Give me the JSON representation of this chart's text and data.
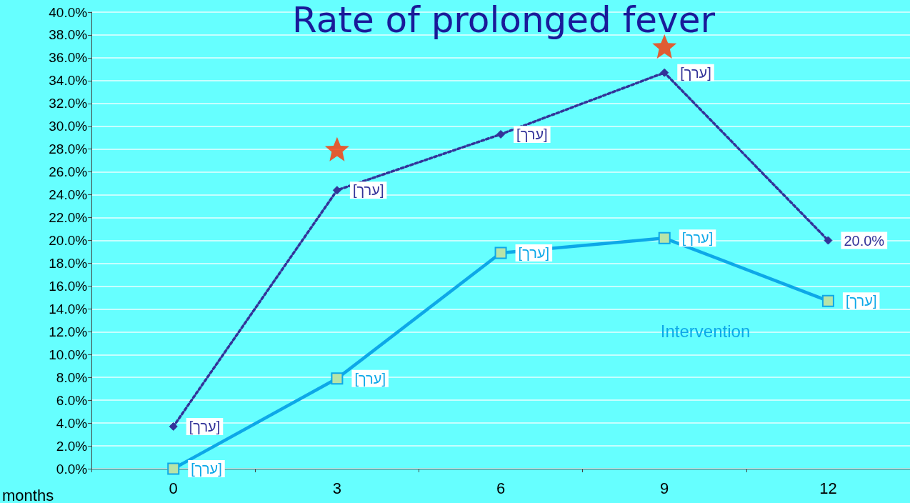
{
  "chart_data": {
    "type": "line",
    "title": "Rate of prolonged fever",
    "xlabel": "months",
    "categories": [
      "0",
      "3",
      "6",
      "9",
      "12"
    ],
    "ylim": [
      0,
      40
    ],
    "yticks": [
      {
        "value": 0,
        "label": "0.0%"
      },
      {
        "value": 2,
        "label": "2.0%"
      },
      {
        "value": 4,
        "label": "4.0%"
      },
      {
        "value": 6,
        "label": "6.0%"
      },
      {
        "value": 8,
        "label": "8.0%"
      },
      {
        "value": 10,
        "label": "10.0%"
      },
      {
        "value": 12,
        "label": "12.0%"
      },
      {
        "value": 14,
        "label": "14.0%"
      },
      {
        "value": 16,
        "label": "16.0%"
      },
      {
        "value": 18,
        "label": "18.0%"
      },
      {
        "value": 20,
        "label": "20.0%"
      },
      {
        "value": 22,
        "label": "22.0%"
      },
      {
        "value": 24,
        "label": "24.0%"
      },
      {
        "value": 26,
        "label": "26.0%"
      },
      {
        "value": 28,
        "label": "28.0%"
      },
      {
        "value": 30,
        "label": "30.0%"
      },
      {
        "value": 32,
        "label": "32.0%"
      },
      {
        "value": 34,
        "label": "34.0%"
      },
      {
        "value": 36,
        "label": "36.0%"
      },
      {
        "value": 38,
        "label": "38.0%"
      },
      {
        "value": 40,
        "label": "40.0%"
      }
    ],
    "grid": "y",
    "legend": false,
    "series": [
      {
        "color": "#333399",
        "marker": "diamond",
        "line_style": "dotted",
        "values": [
          3.7,
          24.4,
          29.3,
          34.7,
          20.0
        ],
        "value_labels": [
          "[ערך]",
          "[ערך]",
          "[ערך]",
          "[ערך]",
          "20.0%"
        ]
      },
      {
        "name": "Intervention",
        "color": "#0da8e8",
        "marker": "square",
        "line_style": "solid",
        "values": [
          0,
          7.9,
          18.9,
          20.2,
          14.7
        ],
        "value_labels": [
          "[ערך]",
          "[ערך]",
          "[ערך]",
          "[ערך]",
          "[ערך]"
        ]
      },
      {
        "type": "scatter",
        "color": "#ff3300",
        "marker": "star",
        "x": [
          "3",
          "9"
        ],
        "values": [
          28,
          37
        ]
      }
    ]
  }
}
